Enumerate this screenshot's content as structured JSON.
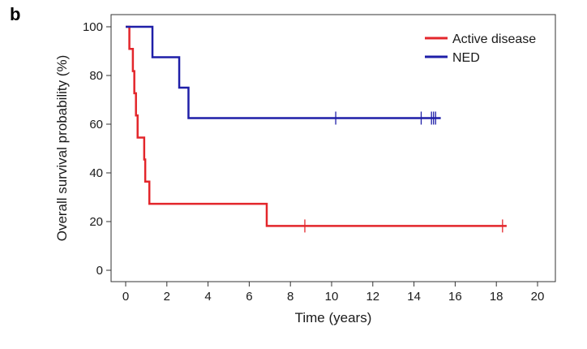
{
  "panel_label": "b",
  "chart_data": {
    "type": "line",
    "subtype": "kaplan-meier-step",
    "xlabel": "Time (years)",
    "ylabel": "Overall survival probability (%)",
    "xlim": [
      0,
      20
    ],
    "ylim": [
      0,
      100
    ],
    "xticks": [
      0,
      2,
      4,
      6,
      8,
      10,
      12,
      14,
      16,
      18,
      20
    ],
    "yticks": [
      0,
      20,
      40,
      60,
      80,
      100
    ],
    "grid": false,
    "legend_position": "top-right",
    "series": [
      {
        "name": "Active disease",
        "color": "#e3262b",
        "steps": [
          [
            0.0,
            100
          ],
          [
            0.18,
            90.9
          ],
          [
            0.35,
            81.8
          ],
          [
            0.42,
            72.7
          ],
          [
            0.5,
            63.6
          ],
          [
            0.58,
            54.5
          ],
          [
            0.9,
            45.5
          ],
          [
            0.95,
            36.4
          ],
          [
            1.15,
            27.3
          ],
          [
            6.85,
            18.2
          ]
        ],
        "end_x": 18.5,
        "censor_x": [
          8.7,
          18.3
        ]
      },
      {
        "name": "NED",
        "color": "#1f1fa8",
        "steps": [
          [
            0.0,
            100
          ],
          [
            1.3,
            87.5
          ],
          [
            2.6,
            75.0
          ],
          [
            3.05,
            62.5
          ]
        ],
        "end_x": 15.3,
        "censor_x": [
          10.2,
          14.35,
          14.85,
          14.95,
          15.05
        ]
      }
    ]
  }
}
